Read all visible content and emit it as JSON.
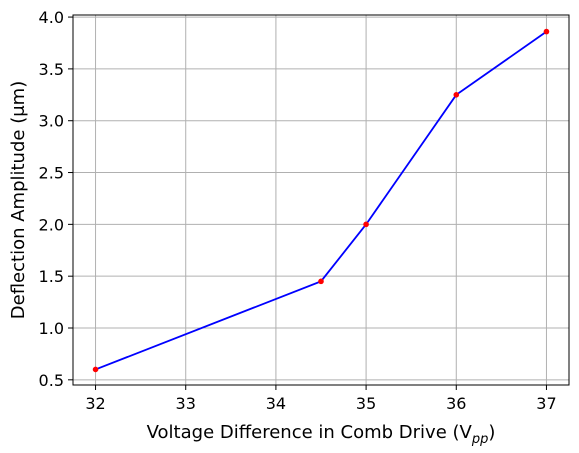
{
  "chart_data": {
    "type": "line",
    "title": "",
    "xlabel": "Voltage Difference in Comb Drive (V",
    "xlabel_sub": "pp",
    "xlabel_close": ")",
    "ylabel": "Deflection Amplitude (μm)",
    "xlim": [
      31.75,
      37.25
    ],
    "ylim": [
      0.45,
      4.02
    ],
    "xticks": [
      32,
      33,
      34,
      35,
      36,
      37
    ],
    "yticks": [
      0.5,
      1.0,
      1.5,
      2.0,
      2.5,
      3.0,
      3.5,
      4.0
    ],
    "xtick_labels": [
      "32",
      "33",
      "34",
      "35",
      "36",
      "37"
    ],
    "ytick_labels": [
      "0.5",
      "1.0",
      "1.5",
      "2.0",
      "2.5",
      "3.0",
      "3.5",
      "4.0"
    ],
    "grid": true,
    "series": [
      {
        "x": [
          32,
          34.5,
          35,
          36,
          37
        ],
        "y": [
          0.6,
          1.45,
          2.0,
          3.25,
          3.86
        ],
        "line_color": "#0000ff",
        "marker_color": "#ff0000"
      }
    ]
  }
}
